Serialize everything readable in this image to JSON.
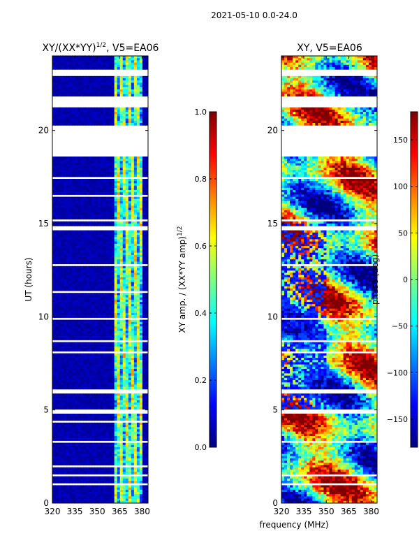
{
  "figure": {
    "suptitle": "2021-05-10 0.0-24.0",
    "xlabel": "frequency (MHz)",
    "ylabel": "UT (hours)"
  },
  "chart_data": [
    {
      "type": "heatmap",
      "title_main": "XY/(XX*YY)",
      "title_sup": "1/2",
      "title_rest": ", V5=EA06",
      "xlim": [
        320,
        384
      ],
      "ylim": [
        0,
        24
      ],
      "xticks": [
        320,
        335,
        350,
        365,
        380
      ],
      "yticks": [
        0,
        5,
        10,
        15,
        20
      ],
      "colormap": "jet",
      "colorbar": {
        "label_main": "XY amp. / (XX*YY amp)",
        "label_sup": "1/2",
        "range": [
          0.0,
          1.0
        ],
        "ticks": [
          "0.0",
          "0.2",
          "0.4",
          "0.6",
          "0.8",
          "1.0"
        ]
      },
      "signal_band_mhz": [
        361,
        381
      ],
      "blank_hours": [
        [
          18.6,
          20.3
        ],
        [
          21.2,
          21.8
        ],
        [
          22.9,
          23.3
        ],
        [
          0.95,
          1.05
        ],
        [
          1.5,
          1.6
        ],
        [
          1.9,
          2.0
        ],
        [
          3.3,
          3.4
        ],
        [
          3.9,
          4.0
        ],
        [
          4.3,
          4.4
        ],
        [
          4.8,
          5.0
        ],
        [
          5.9,
          6.1
        ],
        [
          8.1,
          8.2
        ],
        [
          8.6,
          8.7
        ],
        [
          9.8,
          9.9
        ],
        [
          11.3,
          11.4
        ],
        [
          12.7,
          12.8
        ],
        [
          14.7,
          14.9
        ],
        [
          15.1,
          15.2
        ],
        [
          16.4,
          16.5
        ],
        [
          17.4,
          17.5
        ]
      ]
    },
    {
      "type": "heatmap",
      "title_main": "XY, V5=EA06",
      "xlim": [
        320,
        384
      ],
      "ylim": [
        0,
        24
      ],
      "xticks": [
        320,
        335,
        350,
        365,
        380
      ],
      "yticks": [
        0,
        5,
        10,
        15,
        20
      ],
      "colormap": "jet",
      "colorbar": {
        "label_main": "phase (deg)",
        "range": [
          -180,
          180
        ],
        "ticks": [
          "−150",
          "−100",
          "−50",
          "0",
          "50",
          "100",
          "150"
        ]
      },
      "blank_hours": [
        [
          18.6,
          20.3
        ],
        [
          21.2,
          21.8
        ],
        [
          22.9,
          23.3
        ],
        [
          0.95,
          1.05
        ],
        [
          1.5,
          1.6
        ],
        [
          3.3,
          3.4
        ],
        [
          4.8,
          5.0
        ],
        [
          5.9,
          6.1
        ],
        [
          8.1,
          8.2
        ],
        [
          8.6,
          8.7
        ],
        [
          9.8,
          9.9
        ],
        [
          12.7,
          12.8
        ],
        [
          14.7,
          14.9
        ],
        [
          15.1,
          15.2
        ],
        [
          17.4,
          17.5
        ]
      ]
    }
  ],
  "colors": {
    "jet": [
      "#00007f",
      "#0000ff",
      "#007fff",
      "#00ffff",
      "#7fff7f",
      "#ffff00",
      "#ff7f00",
      "#ff0000",
      "#7f0000"
    ]
  }
}
